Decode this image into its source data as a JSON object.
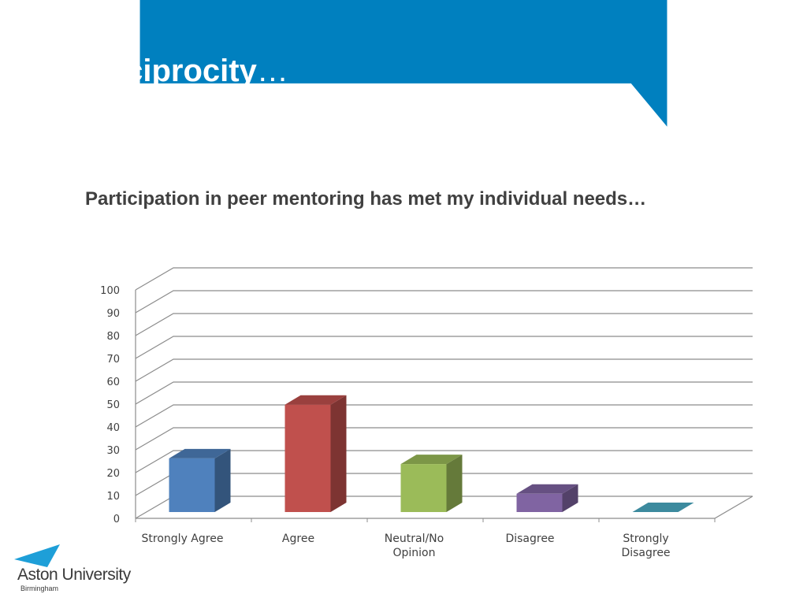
{
  "slide": {
    "title": "Reciprocity",
    "title_suffix": "…",
    "subtitle": "Participation in peer mentoring has met my individual needs…"
  },
  "logo": {
    "name": "Aston University",
    "city": "Birmingham"
  },
  "colors": {
    "header": "#0080bf",
    "title_text": "#ffffff",
    "subtitle_text": "#404040"
  },
  "chart_data": {
    "type": "bar",
    "style": "3d-column",
    "title": "",
    "xlabel": "",
    "ylabel": "",
    "ylim": [
      0,
      100
    ],
    "yticks": [
      "0",
      "10",
      "20",
      "30",
      "40",
      "50",
      "60",
      "70",
      "80",
      "90",
      "100"
    ],
    "grid": true,
    "legend": "none",
    "categories": [
      [
        "Strongly Agree"
      ],
      [
        "Agree"
      ],
      [
        "Neutral/No",
        "Opinion"
      ],
      [
        "Disagree"
      ],
      [
        "Strongly",
        "Disagree"
      ]
    ],
    "values": [
      23.5,
      47,
      21,
      8,
      0.5
    ],
    "bar_colors": [
      "#4f81bd",
      "#c0504d",
      "#9bbb59",
      "#8064a2",
      "#4bacc6"
    ]
  }
}
